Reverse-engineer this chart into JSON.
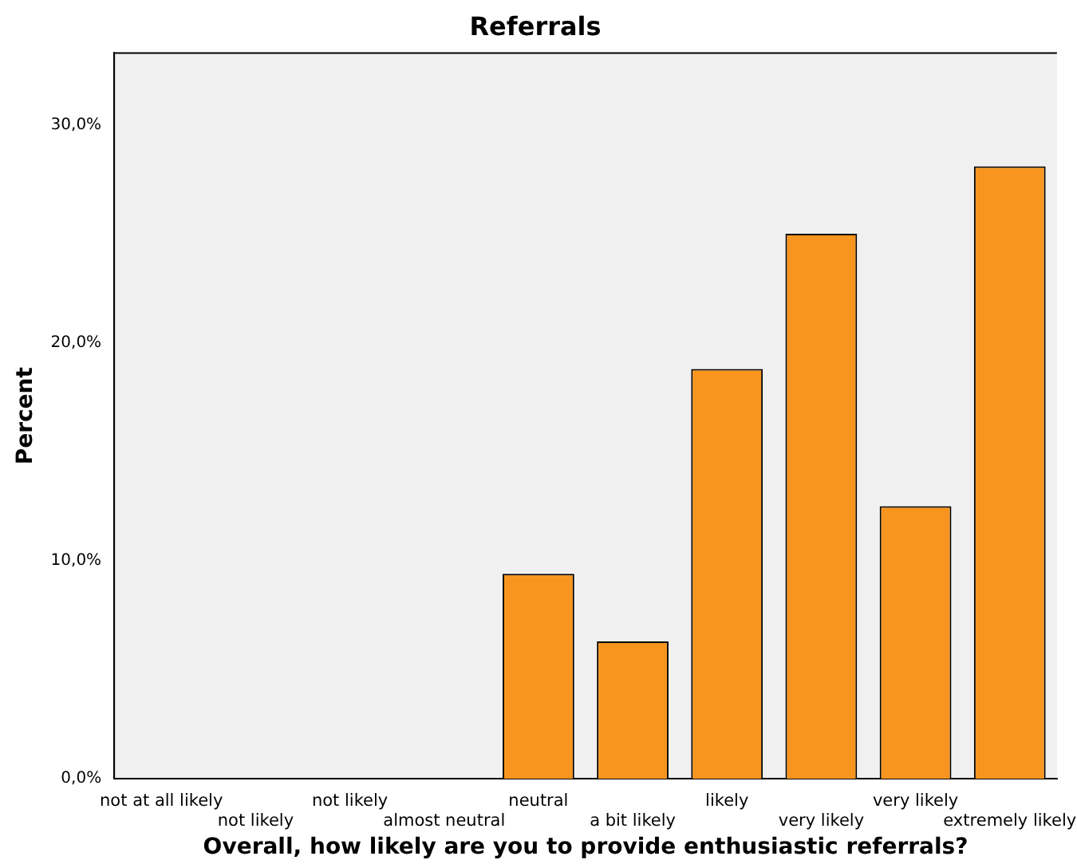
{
  "chart_data": {
    "type": "bar",
    "title": "Referrals",
    "xlabel": "Overall, how likely are you to provide enthusiastic referrals?",
    "ylabel": "Percent",
    "categories": [
      "not at all likely",
      "not likely",
      "not likely",
      "almost neutral",
      "neutral",
      "a bit likely",
      "likely",
      "very likely",
      "very likely",
      "extremely likely"
    ],
    "values": [
      0,
      0,
      0,
      0,
      9.4,
      6.3,
      18.8,
      25,
      12.5,
      28.1
    ],
    "color": "#f7951f",
    "ylim": [
      0,
      33.3
    ],
    "yticks": [
      {
        "value": 0,
        "label": "0,0%"
      },
      {
        "value": 10,
        "label": "10,0%"
      },
      {
        "value": 20,
        "label": "20,0%"
      },
      {
        "value": 30,
        "label": "30,0%"
      }
    ],
    "grid": false
  }
}
